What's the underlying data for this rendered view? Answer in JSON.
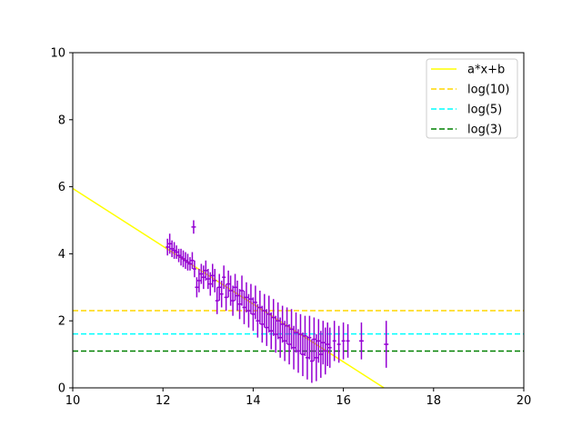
{
  "chart_data": {
    "type": "scatter",
    "title": "",
    "xlabel": "",
    "ylabel": "",
    "xlim": [
      10,
      20
    ],
    "ylim": [
      0,
      10
    ],
    "xticks": [
      10,
      12,
      14,
      16,
      18,
      20
    ],
    "yticks": [
      0,
      2,
      4,
      6,
      8,
      10
    ],
    "grid": false,
    "legend_position": "top-right",
    "legend": [
      "a*x+b",
      "log(10)",
      "log(5)",
      "log(3)"
    ],
    "fit_line": {
      "name": "a*x+b",
      "color": "#ffff00",
      "x": [
        10,
        16.9
      ],
      "y": [
        5.95,
        0
      ]
    },
    "hlines": [
      {
        "name": "log(10)",
        "y": 2.303,
        "color": "#ffd700"
      },
      {
        "name": "log(5)",
        "y": 1.609,
        "color": "#00ffff"
      },
      {
        "name": "log(3)",
        "y": 1.099,
        "color": "#008000"
      }
    ],
    "errorbar_series": {
      "color": "#9400d3",
      "points": [
        [
          12.1,
          4.2,
          0.25,
          0.04
        ],
        [
          12.15,
          4.3,
          0.3,
          0.04
        ],
        [
          12.2,
          4.15,
          0.25,
          0.04
        ],
        [
          12.25,
          4.1,
          0.25,
          0.04
        ],
        [
          12.3,
          4.05,
          0.2,
          0.04
        ],
        [
          12.35,
          3.95,
          0.2,
          0.04
        ],
        [
          12.4,
          3.9,
          0.25,
          0.04
        ],
        [
          12.45,
          3.85,
          0.25,
          0.04
        ],
        [
          12.5,
          3.8,
          0.25,
          0.04
        ],
        [
          12.55,
          3.75,
          0.25,
          0.04
        ],
        [
          12.6,
          3.7,
          0.2,
          0.04
        ],
        [
          12.65,
          3.8,
          0.25,
          0.04
        ],
        [
          12.68,
          4.8,
          0.2,
          0.05
        ],
        [
          12.7,
          3.55,
          0.25,
          0.04
        ],
        [
          12.75,
          3.0,
          0.3,
          0.04
        ],
        [
          12.8,
          3.2,
          0.35,
          0.04
        ],
        [
          12.85,
          3.4,
          0.3,
          0.04
        ],
        [
          12.9,
          3.3,
          0.35,
          0.04
        ],
        [
          12.95,
          3.5,
          0.3,
          0.04
        ],
        [
          13.0,
          3.25,
          0.3,
          0.04
        ],
        [
          13.05,
          3.1,
          0.35,
          0.04
        ],
        [
          13.1,
          3.35,
          0.35,
          0.04
        ],
        [
          13.15,
          3.2,
          0.35,
          0.04
        ],
        [
          13.2,
          2.6,
          0.4,
          0.04
        ],
        [
          13.25,
          3.0,
          0.4,
          0.04
        ],
        [
          13.3,
          2.8,
          0.4,
          0.04
        ],
        [
          13.35,
          3.3,
          0.35,
          0.04
        ],
        [
          13.4,
          2.7,
          0.4,
          0.04
        ],
        [
          13.45,
          3.1,
          0.4,
          0.04
        ],
        [
          13.5,
          2.9,
          0.45,
          0.04
        ],
        [
          13.55,
          2.6,
          0.45,
          0.04
        ],
        [
          13.6,
          3.0,
          0.4,
          0.04
        ],
        [
          13.65,
          2.75,
          0.45,
          0.04
        ],
        [
          13.7,
          2.5,
          0.45,
          0.04
        ],
        [
          13.75,
          2.9,
          0.45,
          0.04
        ],
        [
          13.8,
          2.4,
          0.5,
          0.04
        ],
        [
          13.85,
          2.7,
          0.45,
          0.04
        ],
        [
          13.9,
          2.3,
          0.5,
          0.04
        ],
        [
          13.95,
          2.65,
          0.45,
          0.04
        ],
        [
          14.0,
          2.2,
          0.5,
          0.04
        ],
        [
          14.05,
          2.55,
          0.5,
          0.04
        ],
        [
          14.1,
          2.0,
          0.5,
          0.04
        ],
        [
          14.15,
          2.4,
          0.5,
          0.04
        ],
        [
          14.2,
          1.9,
          0.55,
          0.04
        ],
        [
          14.25,
          2.3,
          0.5,
          0.04
        ],
        [
          14.3,
          1.8,
          0.55,
          0.04
        ],
        [
          14.35,
          2.2,
          0.55,
          0.04
        ],
        [
          14.4,
          1.7,
          0.55,
          0.04
        ],
        [
          14.45,
          2.1,
          0.55,
          0.04
        ],
        [
          14.5,
          1.6,
          0.55,
          0.04
        ],
        [
          14.55,
          2.0,
          0.55,
          0.04
        ],
        [
          14.6,
          1.5,
          0.6,
          0.04
        ],
        [
          14.65,
          1.9,
          0.55,
          0.04
        ],
        [
          14.7,
          1.4,
          0.6,
          0.04
        ],
        [
          14.75,
          1.85,
          0.55,
          0.04
        ],
        [
          14.8,
          1.3,
          0.6,
          0.04
        ],
        [
          14.85,
          1.75,
          0.6,
          0.04
        ],
        [
          14.9,
          1.2,
          0.65,
          0.04
        ],
        [
          14.95,
          1.65,
          0.6,
          0.04
        ],
        [
          15.0,
          1.1,
          0.65,
          0.04
        ],
        [
          15.05,
          1.6,
          0.6,
          0.04
        ],
        [
          15.1,
          1.0,
          0.65,
          0.04
        ],
        [
          15.15,
          1.55,
          0.6,
          0.04
        ],
        [
          15.2,
          0.9,
          0.65,
          0.04
        ],
        [
          15.25,
          1.5,
          0.65,
          0.04
        ],
        [
          15.3,
          0.8,
          0.65,
          0.04
        ],
        [
          15.35,
          1.45,
          0.65,
          0.04
        ],
        [
          15.4,
          0.9,
          0.7,
          0.04
        ],
        [
          15.45,
          1.4,
          0.65,
          0.04
        ],
        [
          15.5,
          1.0,
          0.7,
          0.04
        ],
        [
          15.55,
          1.35,
          0.65,
          0.04
        ],
        [
          15.6,
          1.1,
          0.7,
          0.04
        ],
        [
          15.65,
          1.3,
          0.65,
          0.04
        ],
        [
          15.7,
          1.2,
          0.6,
          0.04
        ],
        [
          15.8,
          1.4,
          0.6,
          0.04
        ],
        [
          15.9,
          1.3,
          0.55,
          0.04
        ],
        [
          16.0,
          1.4,
          0.55,
          0.04
        ],
        [
          16.1,
          1.4,
          0.5,
          0.04
        ],
        [
          16.4,
          1.4,
          0.55,
          0.05
        ],
        [
          16.95,
          1.3,
          0.7,
          0.05
        ]
      ]
    }
  }
}
